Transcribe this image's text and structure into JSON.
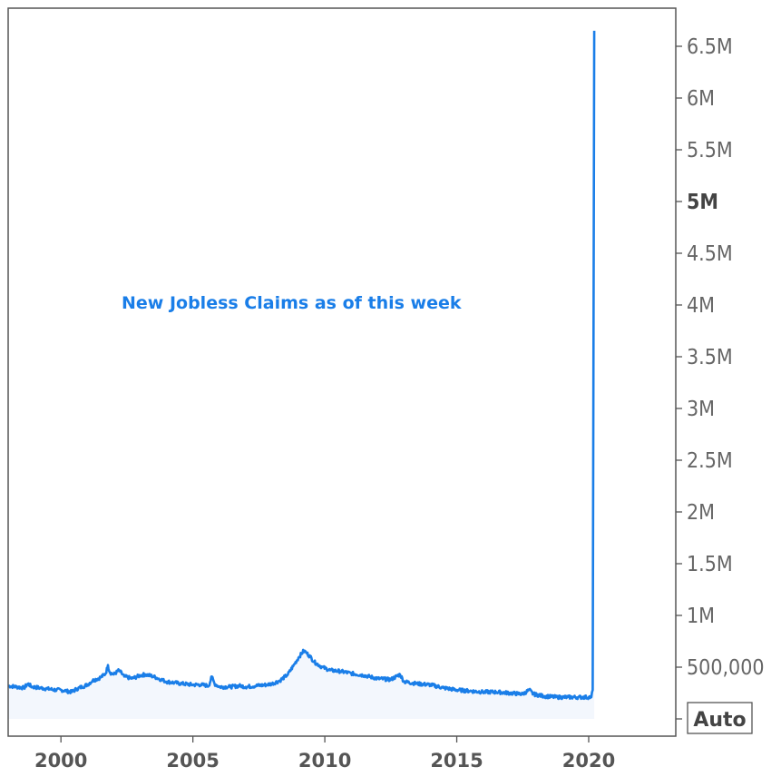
{
  "colors": {
    "series": "#1a7ee8",
    "area": "#f3f7fd",
    "frame": "#555555",
    "axis_text": "#666666"
  },
  "chart_data": {
    "type": "line",
    "annotation": "New Jobless Claims as of this week",
    "xlabel": "",
    "ylabel": "",
    "xlim": [
      1998,
      2023.3
    ],
    "ylim": [
      0,
      6.85
    ],
    "x_ticks": [
      {
        "value": 2000,
        "label": "2000"
      },
      {
        "value": 2005,
        "label": "2005"
      },
      {
        "value": 2010,
        "label": "2010"
      },
      {
        "value": 2015,
        "label": "2015"
      },
      {
        "value": 2020,
        "label": "2020"
      }
    ],
    "y_ticks": [
      {
        "value": 0.5,
        "label": "500,000",
        "bold": false
      },
      {
        "value": 1.0,
        "label": "1M",
        "bold": false
      },
      {
        "value": 1.5,
        "label": "1.5M",
        "bold": false
      },
      {
        "value": 2.0,
        "label": "2M",
        "bold": false
      },
      {
        "value": 2.5,
        "label": "2.5M",
        "bold": false
      },
      {
        "value": 3.0,
        "label": "3M",
        "bold": false
      },
      {
        "value": 3.5,
        "label": "3.5M",
        "bold": false
      },
      {
        "value": 4.0,
        "label": "4M",
        "bold": false
      },
      {
        "value": 4.5,
        "label": "4.5M",
        "bold": false
      },
      {
        "value": 5.0,
        "label": "5M",
        "bold": true
      },
      {
        "value": 5.5,
        "label": "5.5M",
        "bold": false
      },
      {
        "value": 6.0,
        "label": "6M",
        "bold": false
      },
      {
        "value": 6.5,
        "label": "6.5M",
        "bold": false
      }
    ],
    "y_unit": "millions",
    "scale_button": "Auto",
    "series": [
      {
        "values": [
          [
            1998.0,
            0.32
          ],
          [
            1998.3,
            0.31
          ],
          [
            1998.6,
            0.3
          ],
          [
            1998.75,
            0.34
          ],
          [
            1998.9,
            0.31
          ],
          [
            1999.2,
            0.3
          ],
          [
            1999.5,
            0.29
          ],
          [
            1999.8,
            0.28
          ],
          [
            2000.0,
            0.28
          ],
          [
            2000.2,
            0.27
          ],
          [
            2000.4,
            0.26
          ],
          [
            2000.6,
            0.29
          ],
          [
            2000.8,
            0.31
          ],
          [
            2001.0,
            0.33
          ],
          [
            2001.2,
            0.37
          ],
          [
            2001.5,
            0.4
          ],
          [
            2001.7,
            0.44
          ],
          [
            2001.78,
            0.52
          ],
          [
            2001.85,
            0.45
          ],
          [
            2002.0,
            0.43
          ],
          [
            2002.2,
            0.47
          ],
          [
            2002.4,
            0.41
          ],
          [
            2002.7,
            0.39
          ],
          [
            2003.0,
            0.42
          ],
          [
            2003.2,
            0.43
          ],
          [
            2003.5,
            0.41
          ],
          [
            2003.8,
            0.38
          ],
          [
            2004.0,
            0.36
          ],
          [
            2004.3,
            0.35
          ],
          [
            2004.6,
            0.34
          ],
          [
            2005.0,
            0.33
          ],
          [
            2005.3,
            0.33
          ],
          [
            2005.6,
            0.32
          ],
          [
            2005.72,
            0.41
          ],
          [
            2005.82,
            0.34
          ],
          [
            2006.0,
            0.31
          ],
          [
            2006.4,
            0.31
          ],
          [
            2006.8,
            0.32
          ],
          [
            2007.0,
            0.31
          ],
          [
            2007.4,
            0.32
          ],
          [
            2007.8,
            0.33
          ],
          [
            2008.0,
            0.34
          ],
          [
            2008.3,
            0.37
          ],
          [
            2008.6,
            0.43
          ],
          [
            2008.8,
            0.51
          ],
          [
            2009.0,
            0.59
          ],
          [
            2009.2,
            0.66
          ],
          [
            2009.3,
            0.64
          ],
          [
            2009.45,
            0.6
          ],
          [
            2009.6,
            0.55
          ],
          [
            2009.9,
            0.5
          ],
          [
            2010.2,
            0.47
          ],
          [
            2010.6,
            0.46
          ],
          [
            2011.0,
            0.44
          ],
          [
            2011.5,
            0.42
          ],
          [
            2012.0,
            0.39
          ],
          [
            2012.5,
            0.38
          ],
          [
            2012.85,
            0.43
          ],
          [
            2013.0,
            0.36
          ],
          [
            2013.5,
            0.34
          ],
          [
            2014.0,
            0.33
          ],
          [
            2014.5,
            0.3
          ],
          [
            2015.0,
            0.28
          ],
          [
            2015.5,
            0.27
          ],
          [
            2016.0,
            0.26
          ],
          [
            2016.5,
            0.26
          ],
          [
            2017.0,
            0.25
          ],
          [
            2017.5,
            0.24
          ],
          [
            2017.75,
            0.28
          ],
          [
            2017.9,
            0.24
          ],
          [
            2018.3,
            0.22
          ],
          [
            2018.8,
            0.21
          ],
          [
            2019.2,
            0.21
          ],
          [
            2019.6,
            0.21
          ],
          [
            2020.0,
            0.21
          ],
          [
            2020.1,
            0.21
          ],
          [
            2020.15,
            0.28
          ],
          [
            2020.18,
            3.3
          ],
          [
            2020.21,
            6.65
          ]
        ]
      }
    ]
  }
}
